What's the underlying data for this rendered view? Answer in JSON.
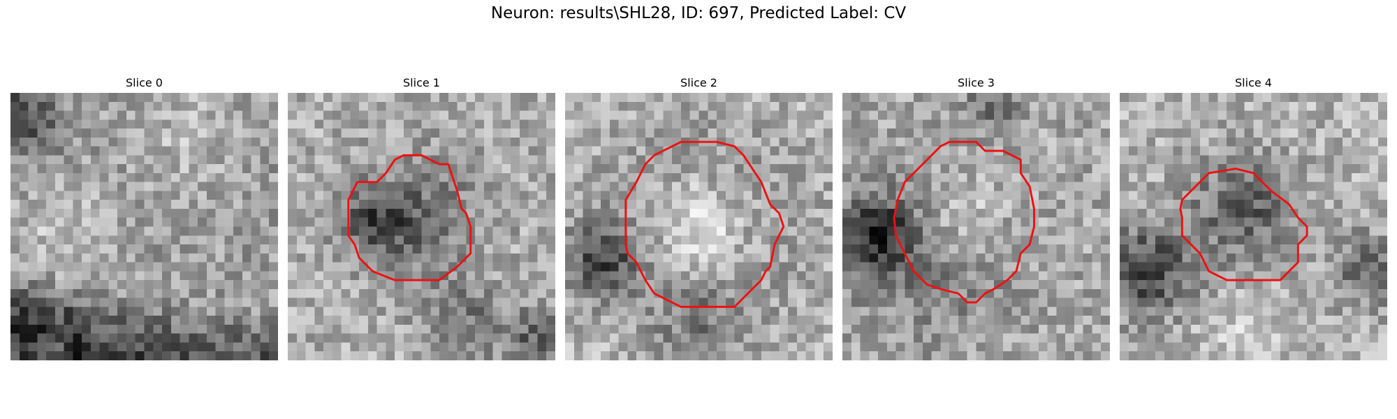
{
  "figure": {
    "title": "Neuron: results\\SHL28, ID: 697, Predicted Label: CV"
  },
  "contour_color": "#ee1111",
  "slices": [
    {
      "label": "Slice 0",
      "has_contour": false
    },
    {
      "label": "Slice 1",
      "has_contour": true
    },
    {
      "label": "Slice 2",
      "has_contour": true
    },
    {
      "label": "Slice 3",
      "has_contour": true
    },
    {
      "label": "Slice 4",
      "has_contour": true
    }
  ]
}
